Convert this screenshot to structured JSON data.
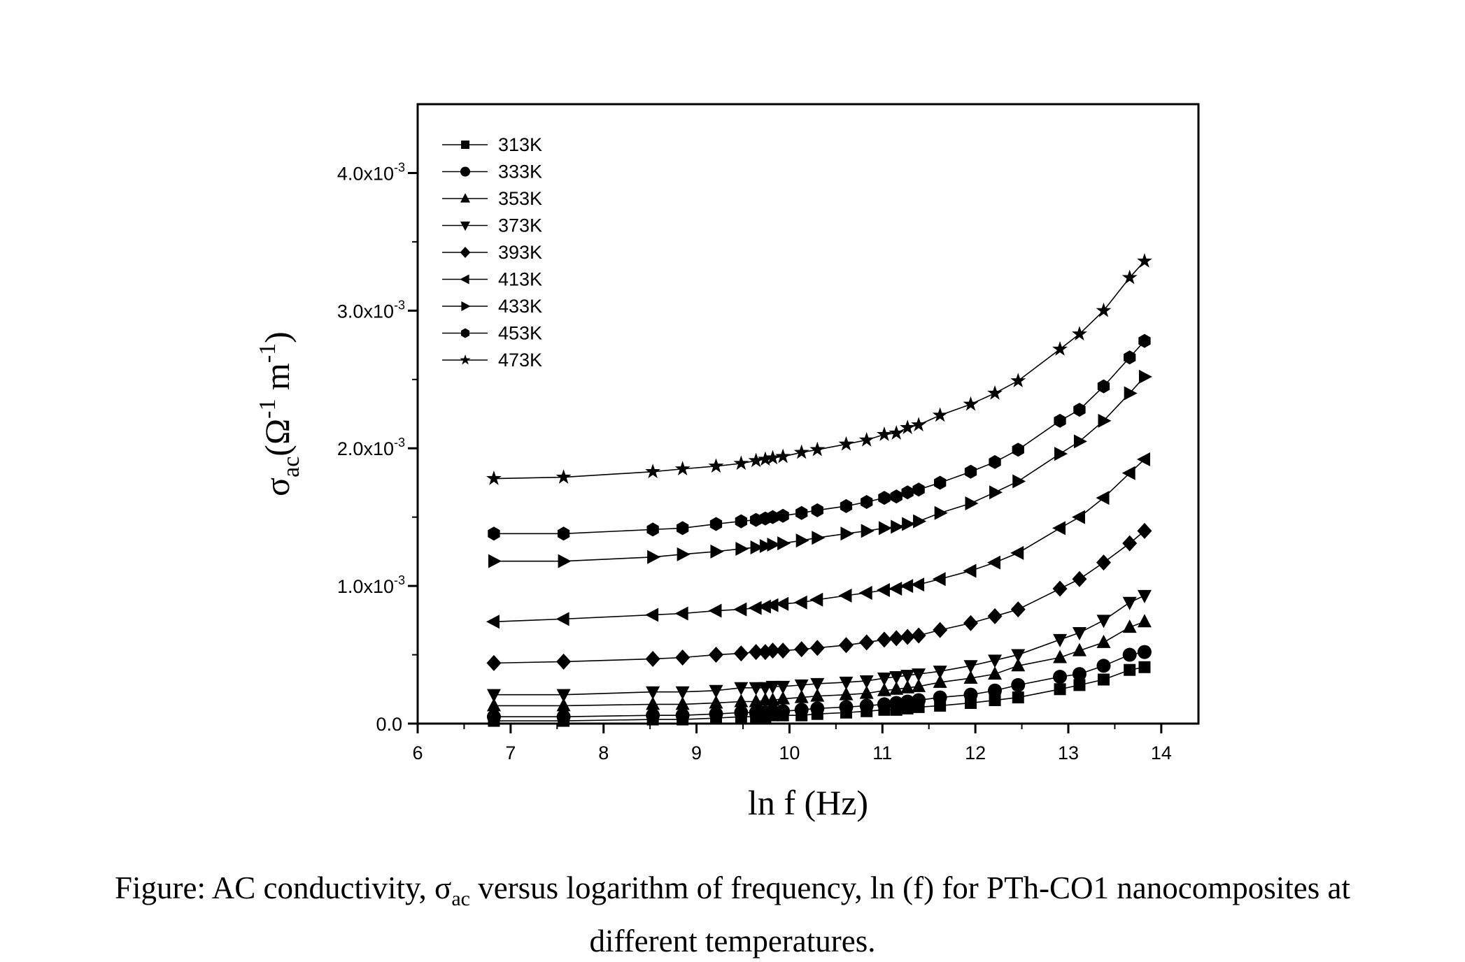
{
  "chart_data": {
    "type": "line",
    "xlabel": "ln f (Hz)",
    "ylabel": "σ_ac(Ω^-1 m^-1)",
    "ylabel_parts": {
      "sym": "σ",
      "sub": "ac",
      "open": "(Ω",
      "sup1": "-1",
      "mid": " m",
      "sup2": "-1",
      "close": ")"
    },
    "xlim": [
      6,
      14.4
    ],
    "ylim": [
      0,
      0.0045
    ],
    "x_ticks": [
      6,
      7,
      8,
      9,
      10,
      11,
      12,
      13,
      14
    ],
    "y_ticks": [
      {
        "value": 0.0,
        "base": "0.0",
        "exp": ""
      },
      {
        "value": 0.001,
        "base": "1.0x10",
        "exp": "-3"
      },
      {
        "value": 0.002,
        "base": "2.0x10",
        "exp": "-3"
      },
      {
        "value": 0.003,
        "base": "3.0x10",
        "exp": "-3"
      },
      {
        "value": 0.004,
        "base": "4.0x10",
        "exp": "-3"
      }
    ],
    "grid": false,
    "legend_position": "top-left",
    "x": [
      6.82,
      7.57,
      8.53,
      8.85,
      9.21,
      9.48,
      9.64,
      9.74,
      9.82,
      9.93,
      10.13,
      10.3,
      10.61,
      10.83,
      11.02,
      11.15,
      11.27,
      11.39,
      11.62,
      11.95,
      12.21,
      12.46,
      12.91,
      13.12,
      13.38,
      13.66,
      13.82
    ],
    "series": [
      {
        "name": "313K",
        "marker": "square",
        "values": [
          2e-05,
          2e-05,
          3e-05,
          3e-05,
          4e-05,
          5e-05,
          5e-05,
          5e-05,
          6e-05,
          6e-05,
          6e-05,
          7e-05,
          8e-05,
          9e-05,
          0.0001,
          0.0001,
          0.00011,
          0.00012,
          0.00013,
          0.00015,
          0.00017,
          0.00019,
          0.00025,
          0.00028,
          0.00032,
          0.00039,
          0.00041
        ]
      },
      {
        "name": "333K",
        "marker": "circle",
        "values": [
          5e-05,
          5e-05,
          6e-05,
          6e-05,
          7e-05,
          8e-05,
          8e-05,
          8e-05,
          9e-05,
          9e-05,
          0.0001,
          0.00011,
          0.00012,
          0.00013,
          0.00014,
          0.00015,
          0.00016,
          0.00017,
          0.00019,
          0.00021,
          0.00024,
          0.00028,
          0.00034,
          0.00036,
          0.00042,
          0.0005,
          0.00052
        ]
      },
      {
        "name": "353K",
        "marker": "triangle-up",
        "values": [
          0.00013,
          0.00013,
          0.00014,
          0.00014,
          0.00015,
          0.00016,
          0.00016,
          0.00017,
          0.00017,
          0.00018,
          0.00019,
          0.0002,
          0.00021,
          0.00022,
          0.00024,
          0.00025,
          0.00026,
          0.00027,
          0.0003,
          0.00033,
          0.00036,
          0.00042,
          0.00048,
          0.00053,
          0.00059,
          0.0007,
          0.00074
        ]
      },
      {
        "name": "373K",
        "marker": "triangle-down",
        "values": [
          0.00021,
          0.00021,
          0.00023,
          0.00023,
          0.00024,
          0.00026,
          0.00026,
          0.00026,
          0.00027,
          0.00027,
          0.00028,
          0.00029,
          0.0003,
          0.00031,
          0.00033,
          0.00034,
          0.00035,
          0.00036,
          0.00038,
          0.00042,
          0.00046,
          0.0005,
          0.00061,
          0.00066,
          0.00075,
          0.00088,
          0.00093
        ]
      },
      {
        "name": "393K",
        "marker": "diamond",
        "values": [
          0.00044,
          0.00045,
          0.00047,
          0.00048,
          0.0005,
          0.00051,
          0.00052,
          0.00052,
          0.00053,
          0.00053,
          0.00054,
          0.00055,
          0.00057,
          0.00059,
          0.00061,
          0.00062,
          0.00063,
          0.00064,
          0.00068,
          0.00073,
          0.00078,
          0.00083,
          0.00098,
          0.00105,
          0.00117,
          0.00131,
          0.0014
        ]
      },
      {
        "name": "413K",
        "marker": "triangle-left",
        "values": [
          0.00074,
          0.00076,
          0.00079,
          0.0008,
          0.00082,
          0.00083,
          0.00084,
          0.00085,
          0.00086,
          0.00087,
          0.00088,
          0.0009,
          0.00093,
          0.00095,
          0.00097,
          0.00098,
          0.001,
          0.00101,
          0.00105,
          0.00111,
          0.00117,
          0.00124,
          0.00142,
          0.0015,
          0.00164,
          0.00182,
          0.00192
        ]
      },
      {
        "name": "433K",
        "marker": "triangle-right",
        "values": [
          0.00118,
          0.00118,
          0.00121,
          0.00123,
          0.00125,
          0.00127,
          0.00128,
          0.00129,
          0.0013,
          0.00131,
          0.00133,
          0.00135,
          0.00138,
          0.0014,
          0.00142,
          0.00143,
          0.00145,
          0.00147,
          0.00153,
          0.0016,
          0.00168,
          0.00176,
          0.00196,
          0.00205,
          0.0022,
          0.0024,
          0.00252
        ]
      },
      {
        "name": "453K",
        "marker": "hexagon",
        "values": [
          0.00138,
          0.00138,
          0.00141,
          0.00142,
          0.00145,
          0.00147,
          0.00148,
          0.00149,
          0.0015,
          0.00151,
          0.00153,
          0.00155,
          0.00158,
          0.00161,
          0.00164,
          0.00165,
          0.00168,
          0.0017,
          0.00175,
          0.00183,
          0.0019,
          0.00199,
          0.0022,
          0.00228,
          0.00245,
          0.00266,
          0.00278
        ]
      },
      {
        "name": "473K",
        "marker": "star",
        "values": [
          0.00178,
          0.00179,
          0.00183,
          0.00185,
          0.00187,
          0.00189,
          0.00191,
          0.00192,
          0.00193,
          0.00194,
          0.00197,
          0.00199,
          0.00203,
          0.00206,
          0.0021,
          0.00211,
          0.00215,
          0.00217,
          0.00224,
          0.00232,
          0.0024,
          0.00249,
          0.00272,
          0.00283,
          0.003,
          0.00324,
          0.00336
        ]
      }
    ]
  },
  "caption": {
    "line1_start": "Figure: AC conductivity, σ",
    "line1_sub": "ac",
    "line1_end": " versus logarithm of frequency, ln (f) for PTh-CO1 nanocomposites at",
    "line2": "different temperatures."
  }
}
